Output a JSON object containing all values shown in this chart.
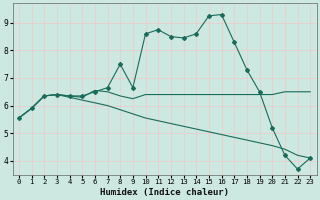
{
  "xlabel": "Humidex (Indice chaleur)",
  "xlim": [
    -0.5,
    23.5
  ],
  "ylim": [
    3.5,
    9.7
  ],
  "xticks": [
    0,
    1,
    2,
    3,
    4,
    5,
    6,
    7,
    8,
    9,
    10,
    11,
    12,
    13,
    14,
    15,
    16,
    17,
    18,
    19,
    20,
    21,
    22,
    23
  ],
  "yticks": [
    4,
    5,
    6,
    7,
    8,
    9
  ],
  "bg_color": "#cce8e0",
  "grid_color": "#e8f8f4",
  "line_color": "#1a6b5a",
  "line1_x": [
    0,
    1,
    2,
    3,
    4,
    5,
    6,
    7,
    8,
    9,
    10,
    11,
    12,
    13,
    14,
    15,
    16,
    17,
    18,
    19,
    20,
    21,
    22,
    23
  ],
  "line1_y": [
    5.55,
    5.9,
    6.35,
    6.4,
    6.35,
    6.35,
    6.5,
    6.65,
    7.5,
    6.65,
    8.6,
    8.75,
    8.5,
    8.45,
    8.6,
    9.25,
    9.3,
    8.3,
    7.3,
    6.5,
    5.2,
    4.2,
    3.7,
    4.1
  ],
  "line2_x": [
    0,
    1,
    2,
    3,
    4,
    5,
    6,
    7,
    8,
    9,
    10,
    11,
    12,
    13,
    14,
    15,
    16,
    17,
    18,
    19,
    20,
    21,
    22,
    23
  ],
  "line2_y": [
    5.55,
    5.9,
    6.35,
    6.4,
    6.35,
    6.3,
    6.55,
    6.5,
    6.35,
    6.25,
    6.4,
    6.4,
    6.4,
    6.4,
    6.4,
    6.4,
    6.4,
    6.4,
    6.4,
    6.4,
    6.4,
    6.5,
    6.5,
    6.5
  ],
  "line3_x": [
    0,
    1,
    2,
    3,
    4,
    5,
    6,
    7,
    8,
    9,
    10,
    11,
    12,
    13,
    14,
    15,
    16,
    17,
    18,
    19,
    20,
    21,
    22,
    23
  ],
  "line3_y": [
    5.55,
    5.9,
    6.35,
    6.4,
    6.3,
    6.2,
    6.1,
    6.0,
    5.85,
    5.7,
    5.55,
    5.45,
    5.35,
    5.25,
    5.15,
    5.05,
    4.95,
    4.85,
    4.75,
    4.65,
    4.55,
    4.42,
    4.2,
    4.1
  ]
}
